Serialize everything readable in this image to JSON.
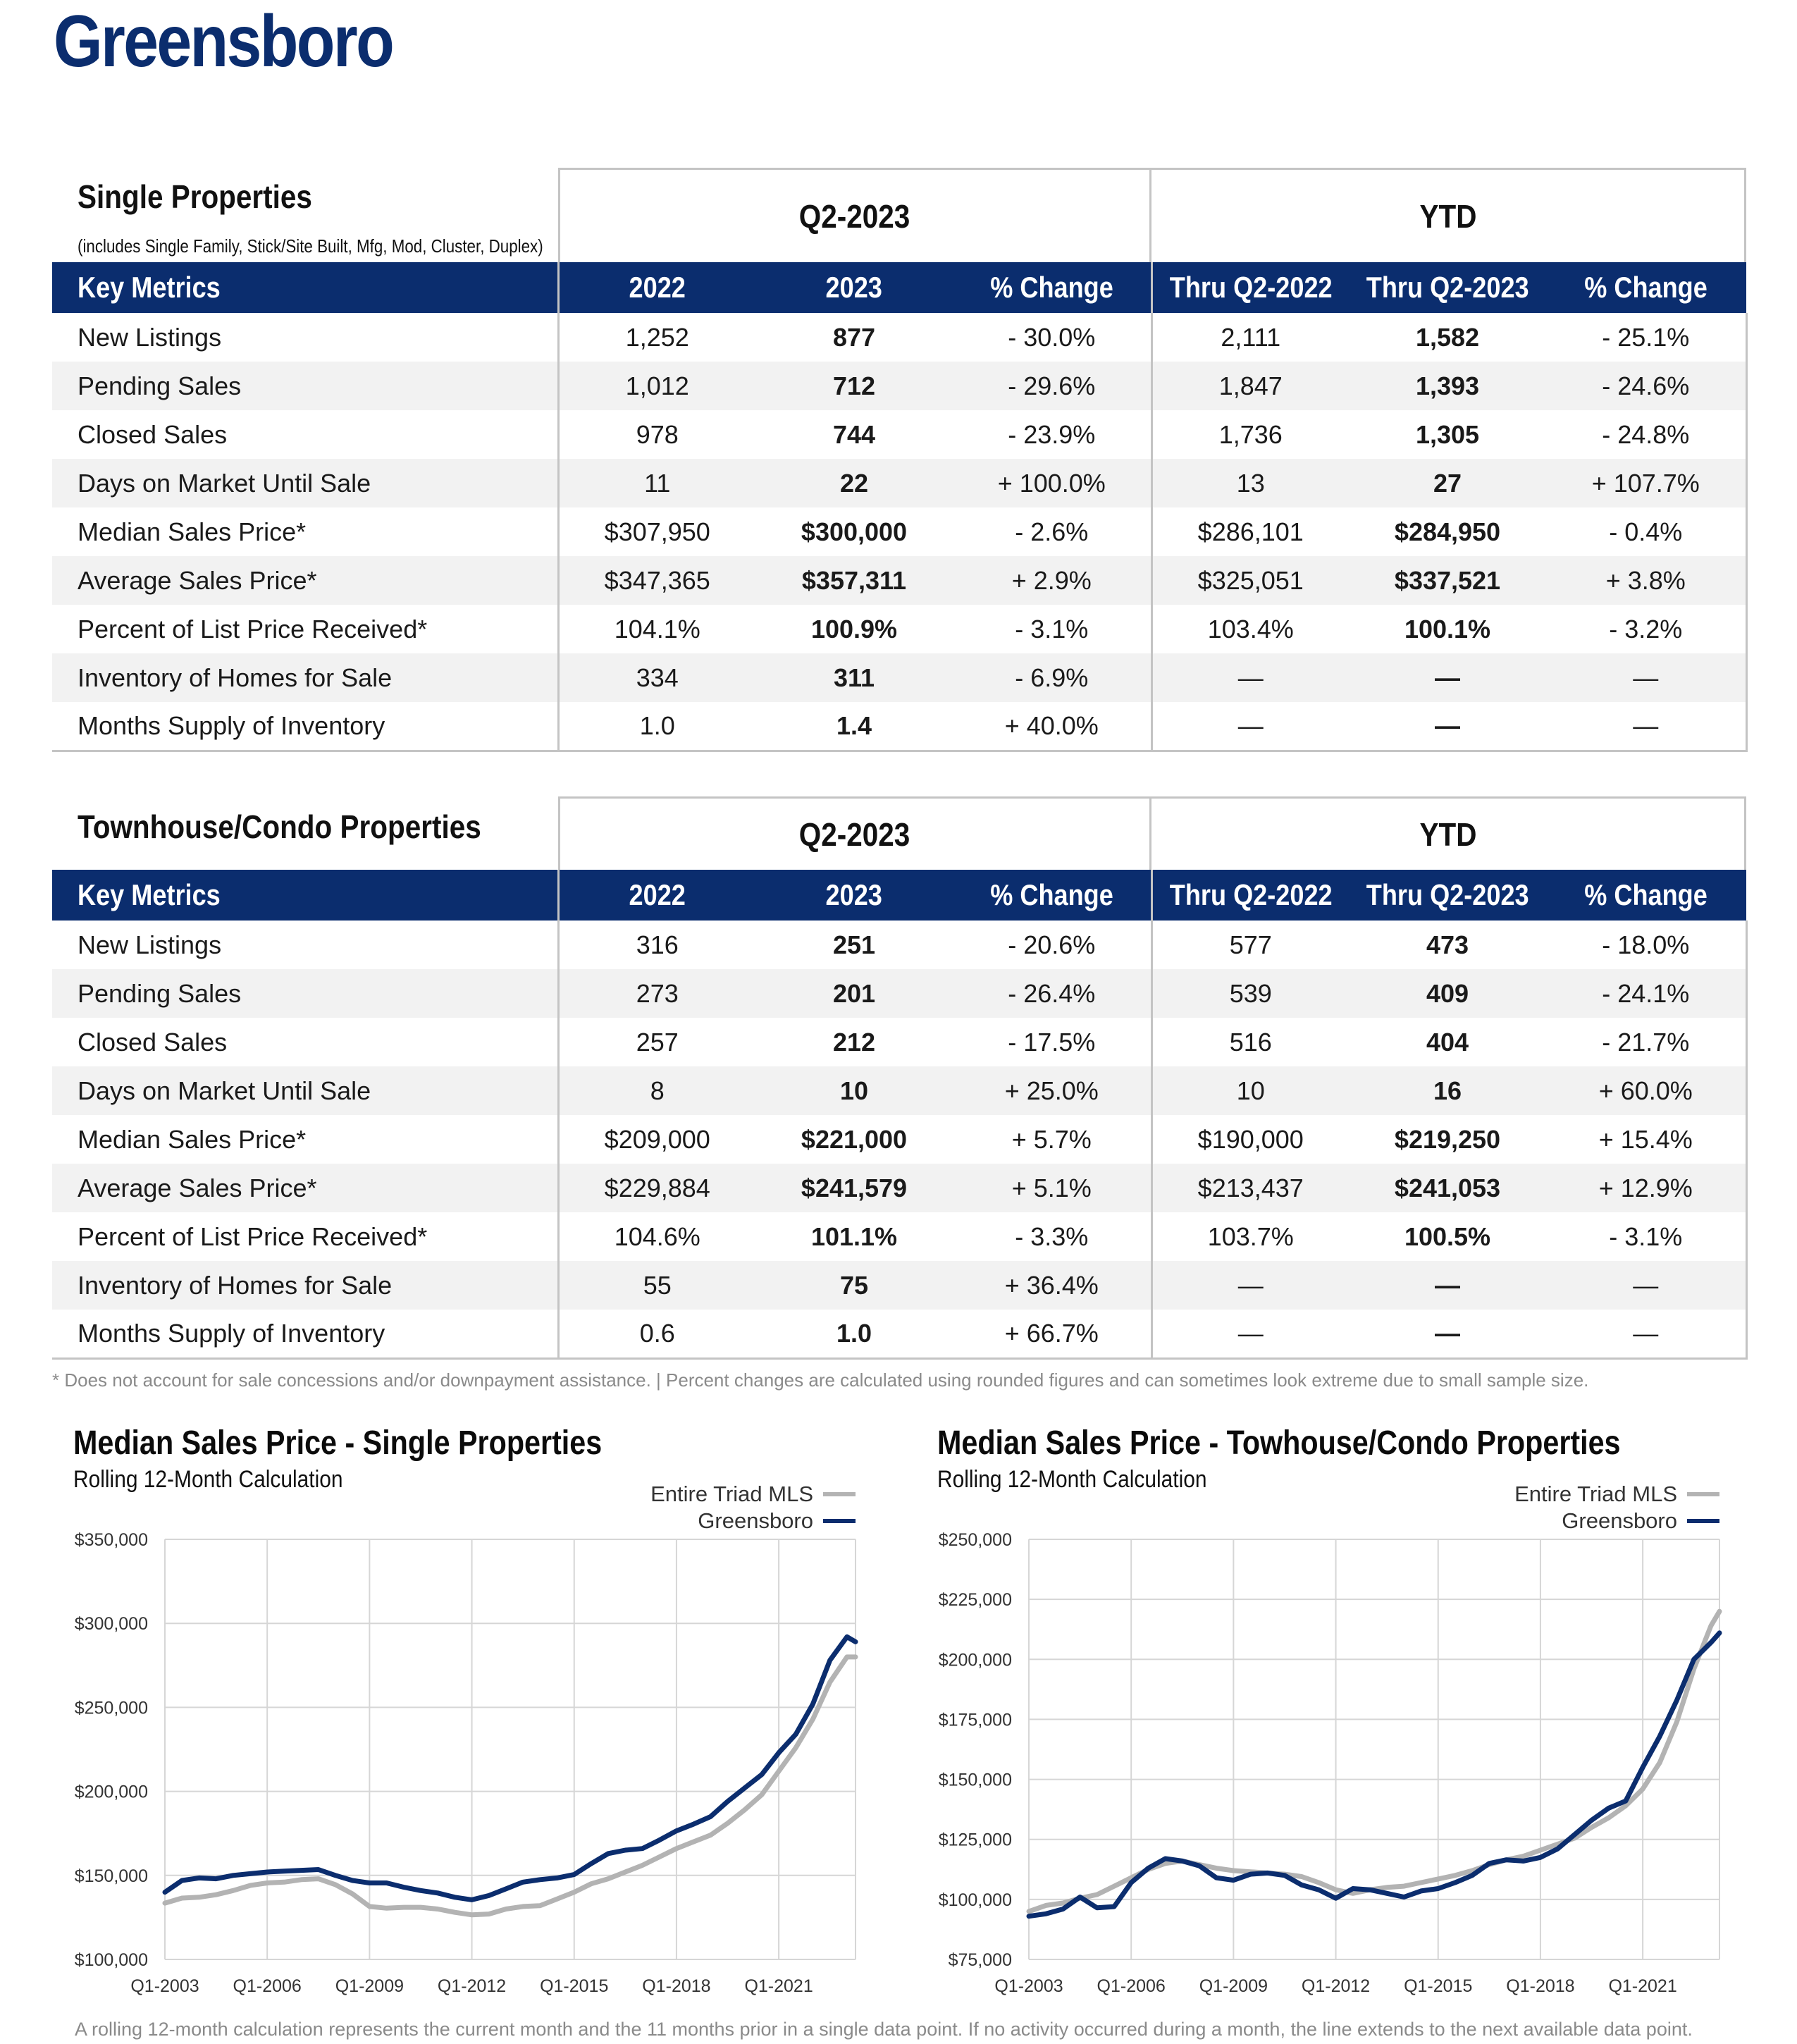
{
  "city": "Greensboro",
  "single": {
    "title": "Single Properties",
    "note": "(includes Single Family, Stick/Site Built, Mfg, Mod, Cluster, Duplex)",
    "period_label": "Q2-2023",
    "ytd_label": "YTD",
    "columns": [
      "Key Metrics",
      "2022",
      "2023",
      "% Change",
      "Thru Q2-2022",
      "Thru Q2-2023",
      "% Change"
    ],
    "rows": [
      [
        "New Listings",
        "1,252",
        "877",
        "- 30.0%",
        "2,111",
        "1,582",
        "- 25.1%"
      ],
      [
        "Pending Sales",
        "1,012",
        "712",
        "- 29.6%",
        "1,847",
        "1,393",
        "- 24.6%"
      ],
      [
        "Closed Sales",
        "978",
        "744",
        "- 23.9%",
        "1,736",
        "1,305",
        "- 24.8%"
      ],
      [
        "Days on Market Until Sale",
        "11",
        "22",
        "+ 100.0%",
        "13",
        "27",
        "+ 107.7%"
      ],
      [
        "Median Sales Price*",
        "$307,950",
        "$300,000",
        "- 2.6%",
        "$286,101",
        "$284,950",
        "- 0.4%"
      ],
      [
        "Average Sales Price*",
        "$347,365",
        "$357,311",
        "+ 2.9%",
        "$325,051",
        "$337,521",
        "+ 3.8%"
      ],
      [
        "Percent of List Price Received*",
        "104.1%",
        "100.9%",
        "- 3.1%",
        "103.4%",
        "100.1%",
        "- 3.2%"
      ],
      [
        "Inventory of Homes for Sale",
        "334",
        "311",
        "- 6.9%",
        "—",
        "—",
        "—"
      ],
      [
        "Months Supply of Inventory",
        "1.0",
        "1.4",
        "+ 40.0%",
        "—",
        "—",
        "—"
      ]
    ]
  },
  "condo": {
    "title": "Townhouse/Condo Properties",
    "period_label": "Q2-2023",
    "ytd_label": "YTD",
    "columns": [
      "Key Metrics",
      "2022",
      "2023",
      "% Change",
      "Thru Q2-2022",
      "Thru Q2-2023",
      "% Change"
    ],
    "rows": [
      [
        "New Listings",
        "316",
        "251",
        "- 20.6%",
        "577",
        "473",
        "- 18.0%"
      ],
      [
        "Pending Sales",
        "273",
        "201",
        "- 26.4%",
        "539",
        "409",
        "- 24.1%"
      ],
      [
        "Closed Sales",
        "257",
        "212",
        "- 17.5%",
        "516",
        "404",
        "- 21.7%"
      ],
      [
        "Days on Market Until Sale",
        "8",
        "10",
        "+ 25.0%",
        "10",
        "16",
        "+ 60.0%"
      ],
      [
        "Median Sales Price*",
        "$209,000",
        "$221,000",
        "+ 5.7%",
        "$190,000",
        "$219,250",
        "+ 15.4%"
      ],
      [
        "Average Sales Price*",
        "$229,884",
        "$241,579",
        "+ 5.1%",
        "$213,437",
        "$241,053",
        "+ 12.9%"
      ],
      [
        "Percent of List Price Received*",
        "104.6%",
        "101.1%",
        "- 3.3%",
        "103.7%",
        "100.5%",
        "- 3.1%"
      ],
      [
        "Inventory of Homes for Sale",
        "55",
        "75",
        "+ 36.4%",
        "—",
        "—",
        "—"
      ],
      [
        "Months Supply of Inventory",
        "0.6",
        "1.0",
        "+ 66.7%",
        "—",
        "—",
        "—"
      ]
    ]
  },
  "footnote": "* Does not account for sale concessions and/or downpayment assistance. | Percent changes are calculated using rounded figures and can sometimes look extreme due to small sample size.",
  "bottom_note": "A rolling 12-month calculation represents the current month and the 11 months prior in a single data point. If no activity occurred during a month, the line extends to the next available data point.",
  "colors": {
    "brand_navy": "#0b2d6e",
    "triad_gray": "#b3b3b3",
    "header_text": "#ffffff",
    "shaded_row": "#f2f2f2"
  },
  "chart_data": [
    {
      "type": "line",
      "title": "Median Sales Price - Single Properties",
      "subtitle": "Rolling 12-Month Calculation",
      "x_ticks": [
        "Q1-2003",
        "Q1-2006",
        "Q1-2009",
        "Q1-2012",
        "Q1-2015",
        "Q1-2018",
        "Q1-2021"
      ],
      "x_range": [
        2003.0,
        2023.25
      ],
      "y_ticks": [
        "$100,000",
        "$150,000",
        "$200,000",
        "$250,000",
        "$300,000",
        "$350,000"
      ],
      "ylim": [
        100000,
        350000
      ],
      "grid": true,
      "legend_position": "top-right",
      "series": [
        {
          "name": "Entire Triad MLS",
          "color": "#b3b3b3",
          "x": [
            2003.0,
            2003.5,
            2004.0,
            2004.5,
            2005.0,
            2005.5,
            2006.0,
            2006.5,
            2007.0,
            2007.5,
            2008.0,
            2008.5,
            2009.0,
            2009.5,
            2010.0,
            2010.5,
            2011.0,
            2011.5,
            2012.0,
            2012.5,
            2013.0,
            2013.5,
            2014.0,
            2014.5,
            2015.0,
            2015.5,
            2016.0,
            2016.5,
            2017.0,
            2017.5,
            2018.0,
            2018.5,
            2019.0,
            2019.5,
            2020.0,
            2020.5,
            2021.0,
            2021.5,
            2022.0,
            2022.5,
            2023.0,
            2023.25
          ],
          "y": [
            133500,
            136500,
            137000,
            138500,
            141000,
            144000,
            145500,
            146000,
            147500,
            148000,
            144500,
            139000,
            131500,
            130500,
            131000,
            131000,
            130000,
            128000,
            126500,
            127000,
            130000,
            131500,
            132000,
            136000,
            140000,
            145000,
            148000,
            152000,
            156000,
            161000,
            166000,
            170000,
            174000,
            181000,
            189000,
            198000,
            212000,
            226000,
            243000,
            265000,
            280000,
            280000
          ]
        },
        {
          "name": "Greensboro",
          "color": "#0b2d6e",
          "x": [
            2003.0,
            2003.5,
            2004.0,
            2004.5,
            2005.0,
            2005.5,
            2006.0,
            2006.5,
            2007.0,
            2007.5,
            2008.0,
            2008.5,
            2009.0,
            2009.5,
            2010.0,
            2010.5,
            2011.0,
            2011.5,
            2012.0,
            2012.5,
            2013.0,
            2013.5,
            2014.0,
            2014.5,
            2015.0,
            2015.5,
            2016.0,
            2016.5,
            2017.0,
            2017.5,
            2018.0,
            2018.5,
            2019.0,
            2019.5,
            2020.0,
            2020.5,
            2021.0,
            2021.5,
            2022.0,
            2022.5,
            2023.0,
            2023.25
          ],
          "y": [
            140000,
            147000,
            148500,
            148000,
            150000,
            151000,
            152000,
            152500,
            153000,
            153500,
            150000,
            147000,
            145500,
            145500,
            143000,
            141000,
            139500,
            137000,
            135500,
            138000,
            142000,
            146000,
            147500,
            148500,
            150500,
            157000,
            163000,
            165000,
            166000,
            171000,
            176500,
            180500,
            185000,
            194000,
            202000,
            210000,
            223000,
            234000,
            252000,
            278000,
            292000,
            289000
          ]
        }
      ]
    },
    {
      "type": "line",
      "title": "Median Sales Price - Towhouse/Condo Properties",
      "subtitle": "Rolling 12-Month Calculation",
      "x_ticks": [
        "Q1-2003",
        "Q1-2006",
        "Q1-2009",
        "Q1-2012",
        "Q1-2015",
        "Q1-2018",
        "Q1-2021"
      ],
      "x_range": [
        2003.0,
        2023.25
      ],
      "y_ticks": [
        "$75,000",
        "$100,000",
        "$125,000",
        "$150,000",
        "$175,000",
        "$200,000",
        "$225,000",
        "$250,000"
      ],
      "ylim": [
        75000,
        250000
      ],
      "grid": true,
      "legend_position": "top-right",
      "series": [
        {
          "name": "Entire Triad MLS",
          "color": "#b3b3b3",
          "x": [
            2003.0,
            2003.5,
            2004.0,
            2004.5,
            2005.0,
            2005.5,
            2006.0,
            2006.5,
            2007.0,
            2007.5,
            2008.0,
            2008.5,
            2009.0,
            2009.5,
            2010.0,
            2010.5,
            2011.0,
            2011.5,
            2012.0,
            2012.5,
            2013.0,
            2013.5,
            2014.0,
            2014.5,
            2015.0,
            2015.5,
            2016.0,
            2016.5,
            2017.0,
            2017.5,
            2018.0,
            2018.5,
            2019.0,
            2019.5,
            2020.0,
            2020.5,
            2021.0,
            2021.5,
            2022.0,
            2022.5,
            2023.0,
            2023.25
          ],
          "y": [
            95000,
            97500,
            98500,
            100500,
            102000,
            105500,
            109000,
            112500,
            115000,
            116000,
            114500,
            113000,
            112000,
            111500,
            111000,
            110500,
            109500,
            107000,
            104000,
            102500,
            104000,
            105000,
            105500,
            107000,
            108500,
            110000,
            112000,
            114500,
            116500,
            118000,
            120500,
            123000,
            125500,
            130000,
            134000,
            139000,
            146000,
            157000,
            174000,
            196000,
            214000,
            220000
          ]
        },
        {
          "name": "Greensboro",
          "color": "#0b2d6e",
          "x": [
            2003.0,
            2003.5,
            2004.0,
            2004.5,
            2005.0,
            2005.5,
            2006.0,
            2006.5,
            2007.0,
            2007.5,
            2008.0,
            2008.5,
            2009.0,
            2009.5,
            2010.0,
            2010.5,
            2011.0,
            2011.5,
            2012.0,
            2012.5,
            2013.0,
            2013.5,
            2014.0,
            2014.5,
            2015.0,
            2015.5,
            2016.0,
            2016.5,
            2017.0,
            2017.5,
            2018.0,
            2018.5,
            2019.0,
            2019.5,
            2020.0,
            2020.5,
            2021.0,
            2021.5,
            2022.0,
            2022.5,
            2023.0,
            2023.25
          ],
          "y": [
            93000,
            94000,
            96000,
            101000,
            96500,
            97000,
            107000,
            113000,
            117000,
            116000,
            114000,
            109000,
            108000,
            110500,
            111000,
            110000,
            106000,
            104000,
            100500,
            104500,
            104000,
            102500,
            101000,
            103500,
            104500,
            107000,
            110000,
            115000,
            116500,
            116000,
            117500,
            121000,
            127000,
            133000,
            138000,
            141000,
            155000,
            168000,
            183000,
            200000,
            207000,
            211000
          ]
        }
      ]
    }
  ]
}
